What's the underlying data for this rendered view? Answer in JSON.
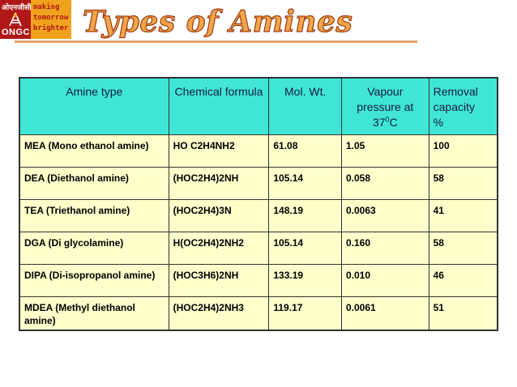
{
  "logo": {
    "hindi_text": "ओएनजीसी",
    "brand": "ONGC",
    "tagline": [
      "making",
      "tomorrow",
      "brighter"
    ],
    "colors": {
      "red": "#b01817",
      "orange": "#f0a21c"
    }
  },
  "title": "Types of Amines",
  "table": {
    "headers": {
      "amine_type": "Amine type",
      "formula": "Chemical formula",
      "mol_wt": "Mol. Wt.",
      "vapour": "Vapour pressure at 37",
      "vapour_sup": "0",
      "vapour_unit": "C",
      "removal": "Removal capacity",
      "removal_unit": "%"
    },
    "rows": [
      {
        "amine": "MEA (Mono ethanol amine)",
        "formula": "HO C2H4NH2",
        "mol_wt": "61.08",
        "vapour": "1.05",
        "removal": "100"
      },
      {
        "amine": "DEA (Diethanol amine)",
        "formula": "(HOC2H4)2NH",
        "mol_wt": "105.14",
        "vapour": "0.058",
        "removal": "58"
      },
      {
        "amine": "TEA (Triethanol amine)",
        "formula": "(HOC2H4)3N",
        "mol_wt": "148.19",
        "vapour": "0.0063",
        "removal": "41"
      },
      {
        "amine": "DGA (Di glycolamine)",
        "formula": "H(OC2H4)2NH2",
        "mol_wt": "105.14",
        "vapour": "0.160",
        "removal": "58"
      },
      {
        "amine": "DIPA (Di-isopropanol amine)",
        "formula": "(HOC3H6)2NH",
        "mol_wt": "133.19",
        "vapour": "0.010",
        "removal": "46"
      },
      {
        "amine": "MDEA (Methyl diethanol amine)",
        "formula": "(HOC2H4)2NH3",
        "mol_wt": "119.17",
        "vapour": "0.0061",
        "removal": "51"
      }
    ],
    "colors": {
      "header_bg": "#3fe6d8",
      "cell_bg": "#ffffcc"
    }
  }
}
